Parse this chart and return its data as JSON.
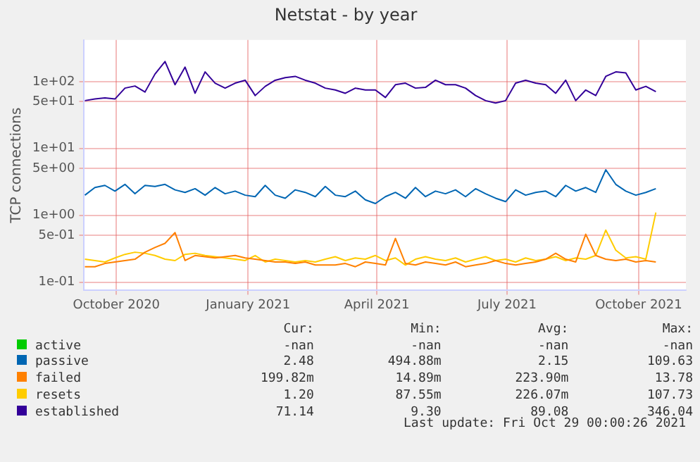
{
  "chart_data": {
    "type": "line",
    "title": "Netstat - by year",
    "ylabel": "TCP connections",
    "log": true,
    "grid": true,
    "legend": "bottom",
    "marker": "none",
    "line_style": "solid",
    "ylim": [
      0.075,
      420
    ],
    "yticks": [
      {
        "value": 0.1,
        "label": "1e-01"
      },
      {
        "value": 0.5,
        "label": "5e-01"
      },
      {
        "value": 1,
        "label": "1e+00"
      },
      {
        "value": 5,
        "label": "5e+00"
      },
      {
        "value": 10,
        "label": "1e+01"
      },
      {
        "value": 50,
        "label": "5e+01"
      },
      {
        "value": 100,
        "label": "1e+02"
      }
    ],
    "xlim": [
      "2020-09-08",
      "2021-11-03"
    ],
    "xticks": [
      {
        "value": "2020-10-01",
        "label": "October 2020"
      },
      {
        "value": "2021-01-01",
        "label": "January 2021"
      },
      {
        "value": "2021-04-01",
        "label": "April 2021"
      },
      {
        "value": "2021-07-01",
        "label": "July 2021"
      },
      {
        "value": "2021-10-01",
        "label": "October 2021"
      }
    ],
    "x": [
      "2020-09-09",
      "2020-09-16",
      "2020-09-23",
      "2020-09-30",
      "2020-10-07",
      "2020-10-14",
      "2020-10-21",
      "2020-10-28",
      "2020-11-04",
      "2020-11-11",
      "2020-11-18",
      "2020-11-25",
      "2020-12-02",
      "2020-12-09",
      "2020-12-16",
      "2020-12-23",
      "2020-12-30",
      "2021-01-06",
      "2021-01-13",
      "2021-01-20",
      "2021-01-27",
      "2021-02-03",
      "2021-02-10",
      "2021-02-17",
      "2021-02-24",
      "2021-03-03",
      "2021-03-10",
      "2021-03-17",
      "2021-03-24",
      "2021-03-31",
      "2021-04-07",
      "2021-04-14",
      "2021-04-21",
      "2021-04-28",
      "2021-05-05",
      "2021-05-12",
      "2021-05-19",
      "2021-05-26",
      "2021-06-02",
      "2021-06-09",
      "2021-06-16",
      "2021-06-23",
      "2021-06-30",
      "2021-07-07",
      "2021-07-14",
      "2021-07-21",
      "2021-07-28",
      "2021-08-04",
      "2021-08-11",
      "2021-08-18",
      "2021-08-25",
      "2021-09-01",
      "2021-09-08",
      "2021-09-15",
      "2021-09-22",
      "2021-09-29",
      "2021-10-06",
      "2021-10-13"
    ],
    "series": [
      {
        "name": "active",
        "color": "#00cc00",
        "values": [
          null,
          null,
          null,
          null,
          null,
          null,
          null,
          null,
          null,
          null,
          null,
          null,
          null,
          null,
          null,
          null,
          null,
          null,
          null,
          null,
          null,
          null,
          null,
          null,
          null,
          null,
          null,
          null,
          null,
          null,
          null,
          null,
          null,
          null,
          null,
          null,
          null,
          null,
          null,
          null,
          null,
          null,
          null,
          null,
          null,
          null,
          null,
          null,
          null,
          null,
          null,
          null,
          null,
          null,
          null,
          null,
          null,
          null
        ]
      },
      {
        "name": "passive",
        "color": "#0066b3",
        "values": [
          2.0,
          2.6,
          2.8,
          2.3,
          2.9,
          2.1,
          2.8,
          2.7,
          2.9,
          2.4,
          2.2,
          2.5,
          2.0,
          2.6,
          2.1,
          2.3,
          2.0,
          1.9,
          2.8,
          2.0,
          1.8,
          2.4,
          2.2,
          1.9,
          2.7,
          2.0,
          1.9,
          2.3,
          1.7,
          1.5,
          1.9,
          2.2,
          1.8,
          2.6,
          1.9,
          2.3,
          2.1,
          2.4,
          1.9,
          2.5,
          2.1,
          1.8,
          1.6,
          2.4,
          2.0,
          2.2,
          2.3,
          1.9,
          2.8,
          2.3,
          2.6,
          2.2,
          4.8,
          2.9,
          2.3,
          2.0,
          2.2,
          2.5
        ]
      },
      {
        "name": "failed",
        "color": "#ff8000",
        "values": [
          0.17,
          0.17,
          0.19,
          0.2,
          0.21,
          0.22,
          0.28,
          0.33,
          0.38,
          0.55,
          0.21,
          0.25,
          0.24,
          0.23,
          0.24,
          0.25,
          0.23,
          0.22,
          0.21,
          0.2,
          0.2,
          0.19,
          0.2,
          0.18,
          0.18,
          0.18,
          0.19,
          0.17,
          0.2,
          0.19,
          0.18,
          0.45,
          0.19,
          0.18,
          0.2,
          0.19,
          0.18,
          0.2,
          0.17,
          0.18,
          0.19,
          0.21,
          0.19,
          0.18,
          0.19,
          0.2,
          0.22,
          0.27,
          0.22,
          0.2,
          0.52,
          0.25,
          0.22,
          0.21,
          0.22,
          0.2,
          0.21,
          0.2
        ]
      },
      {
        "name": "resets",
        "color": "#ffcc00",
        "values": [
          0.22,
          0.21,
          0.2,
          0.23,
          0.26,
          0.28,
          0.27,
          0.25,
          0.22,
          0.21,
          0.26,
          0.27,
          0.25,
          0.24,
          0.23,
          0.22,
          0.21,
          0.25,
          0.2,
          0.22,
          0.21,
          0.2,
          0.21,
          0.2,
          0.22,
          0.24,
          0.21,
          0.23,
          0.22,
          0.25,
          0.21,
          0.23,
          0.18,
          0.22,
          0.24,
          0.22,
          0.21,
          0.23,
          0.2,
          0.22,
          0.24,
          0.21,
          0.22,
          0.2,
          0.23,
          0.21,
          0.22,
          0.24,
          0.21,
          0.23,
          0.22,
          0.25,
          0.6,
          0.3,
          0.23,
          0.24,
          0.22,
          1.1
        ]
      },
      {
        "name": "established",
        "color": "#330099",
        "values": [
          52,
          55,
          57,
          55,
          80,
          86,
          70,
          130,
          200,
          90,
          165,
          67,
          140,
          95,
          80,
          95,
          105,
          62,
          85,
          105,
          115,
          120,
          105,
          95,
          80,
          75,
          67,
          80,
          75,
          75,
          58,
          90,
          95,
          80,
          82,
          105,
          90,
          90,
          80,
          62,
          52,
          48,
          52,
          95,
          105,
          95,
          90,
          67,
          105,
          52,
          75,
          62,
          120,
          140,
          135,
          75,
          85,
          71
        ]
      }
    ],
    "annotations": [
      "Cur:",
      "Min:",
      "Avg:",
      "Max:",
      "-nan",
      "-nan",
      "-nan",
      "-nan",
      "2.48",
      "494.88m",
      "2.15",
      "109.63",
      "199.82m",
      "14.89m",
      "223.90m",
      "13.78",
      "1.20",
      "87.55m",
      "226.07m",
      "107.73",
      "71.14",
      "9.30",
      "89.08",
      "346.04",
      "Last update: Fri Oct 29 00:00:26 2021"
    ]
  }
}
